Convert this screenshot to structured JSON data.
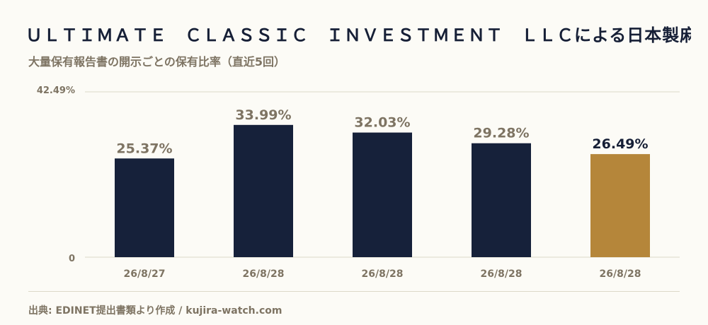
{
  "title": "ＵＬＴＩＭＡＴＥ　ＣＬＡＳＳＩＣ　ＩＮＶＥＳＴＭＥＮＴ　ＬＬＣによる日本製麻の保…",
  "subtitle": "大量保有報告書の開示ごとの保有比率（直近5回）",
  "source": "出典: EDINET提出書類より作成 / kujira-watch.com",
  "colors": {
    "bar": "#16213a",
    "highlight": "#b5863a",
    "value_label": "#7e7463",
    "highlight_label": "#161f36",
    "grid": "#ddd8c8",
    "tick": "#7e7463"
  },
  "chart_data": {
    "type": "bar",
    "categories": [
      "26/8/27",
      "26/8/28",
      "26/8/28",
      "26/8/28",
      "26/8/28"
    ],
    "values": [
      25.37,
      33.99,
      32.03,
      29.28,
      26.49
    ],
    "value_labels": [
      "25.37%",
      "33.99%",
      "32.03%",
      "29.28%",
      "26.49%"
    ],
    "highlight_index": 4,
    "ylim": [
      0,
      42.49
    ],
    "y_tick_labels": [
      "0",
      "42.49%"
    ],
    "grid": true,
    "title": "",
    "xlabel": "",
    "ylabel": ""
  }
}
